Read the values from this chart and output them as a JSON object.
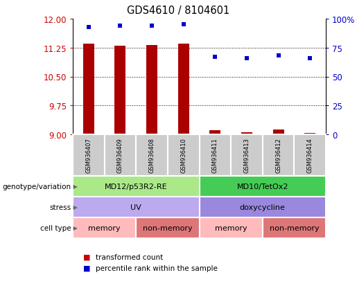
{
  "title": "GDS4610 / 8104601",
  "samples": [
    "GSM936407",
    "GSM936409",
    "GSM936408",
    "GSM936410",
    "GSM936411",
    "GSM936413",
    "GSM936412",
    "GSM936414"
  ],
  "transformed_counts": [
    11.35,
    11.3,
    11.32,
    11.35,
    9.1,
    9.05,
    9.12,
    9.03
  ],
  "percentile_ranks": [
    93,
    94,
    94,
    95,
    67,
    66,
    68,
    66
  ],
  "ylim_left": [
    9,
    12
  ],
  "ylim_right": [
    0,
    100
  ],
  "yticks_left": [
    9,
    9.75,
    10.5,
    11.25,
    12
  ],
  "yticks_right": [
    0,
    25,
    50,
    75,
    100
  ],
  "ytick_right_labels": [
    "0",
    "25",
    "50",
    "75",
    "100%"
  ],
  "bar_color": "#aa0000",
  "dot_color": "#0000cc",
  "genotype_labels": [
    {
      "label": "MD12/p53R2-RE",
      "start": 0,
      "end": 3,
      "color": "#aae888"
    },
    {
      "label": "MD10/TetOx2",
      "start": 4,
      "end": 7,
      "color": "#44cc55"
    }
  ],
  "stress_labels": [
    {
      "label": "UV",
      "start": 0,
      "end": 3,
      "color": "#bbaaee"
    },
    {
      "label": "doxycycline",
      "start": 4,
      "end": 7,
      "color": "#9988dd"
    }
  ],
  "cell_type_labels": [
    {
      "label": "memory",
      "start": 0,
      "end": 1,
      "color": "#ffbbbb"
    },
    {
      "label": "non-memory",
      "start": 2,
      "end": 3,
      "color": "#dd7777"
    },
    {
      "label": "memory",
      "start": 4,
      "end": 5,
      "color": "#ffbbbb"
    },
    {
      "label": "non-memory",
      "start": 6,
      "end": 7,
      "color": "#dd7777"
    }
  ],
  "annotation_row_labels": [
    "genotype/variation",
    "stress",
    "cell type"
  ],
  "legend_items": [
    {
      "label": "transformed count",
      "color": "#cc0000"
    },
    {
      "label": "percentile rank within the sample",
      "color": "#0000cc"
    }
  ],
  "background_color": "#ffffff",
  "tick_label_color_left": "#cc0000",
  "tick_label_color_right": "#0000cc",
  "sample_box_color": "#cccccc",
  "sample_box_edge": "#ffffff",
  "grid_dotted_ticks": [
    9.75,
    10.5,
    11.25
  ]
}
